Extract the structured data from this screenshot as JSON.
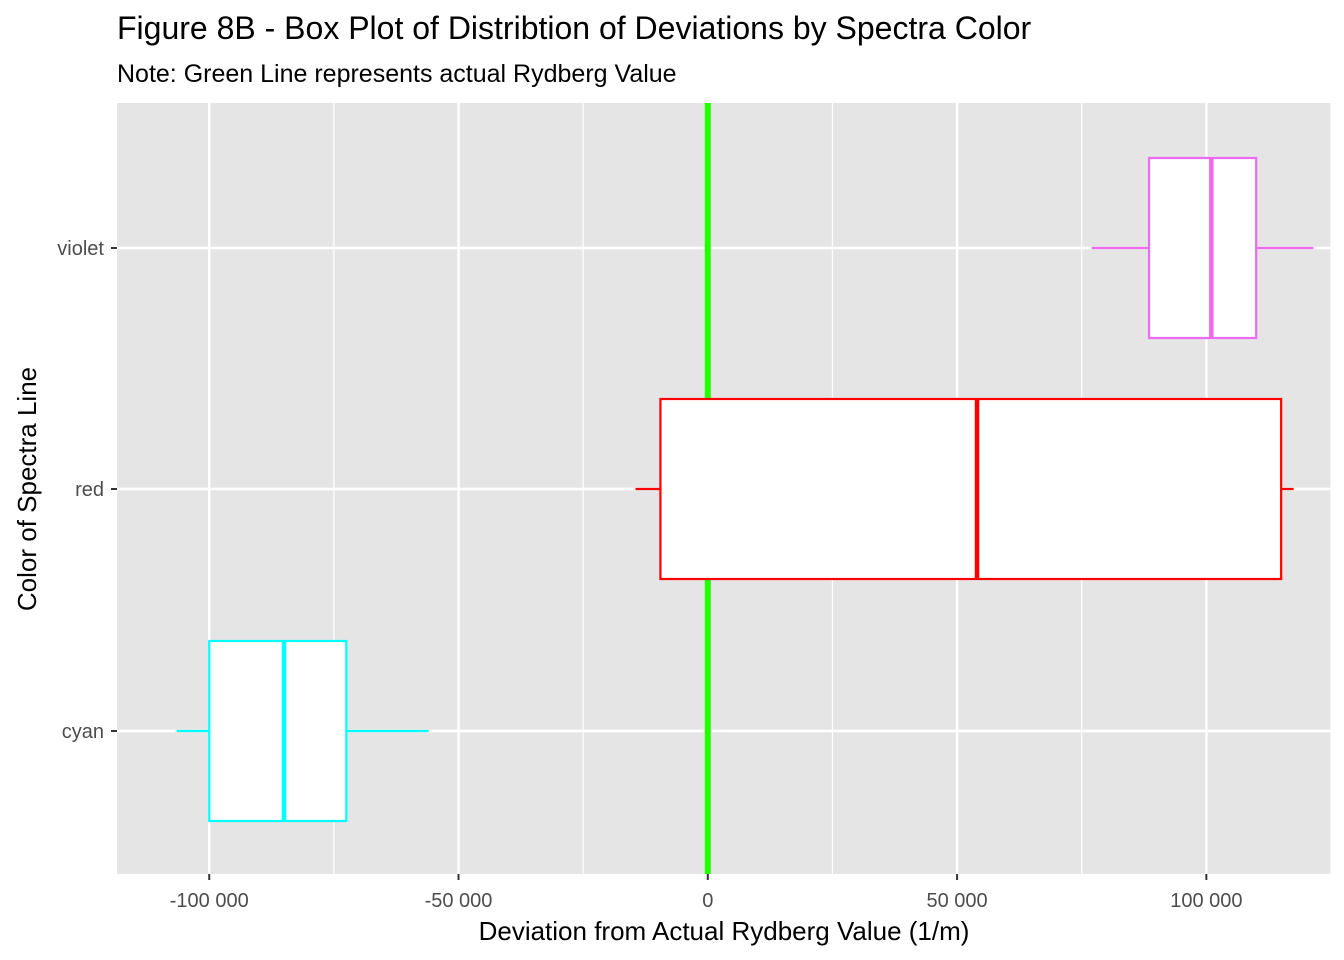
{
  "chart_data": {
    "type": "box",
    "title": "Figure 8B - Box Plot of Distribtion of Deviations by Spectra Color",
    "subtitle": "Note: Green Line represents actual Rydberg Value",
    "xlabel": "Deviation from Actual Rydberg Value (1/m)",
    "ylabel": "Color of Spectra Line",
    "xlim": [
      -118500,
      125000
    ],
    "x_ticks": [
      {
        "value": -100000,
        "label": "-100 000"
      },
      {
        "value": -50000,
        "label": "-50 000"
      },
      {
        "value": 0,
        "label": "0"
      },
      {
        "value": 50000,
        "label": "50 000"
      },
      {
        "value": 100000,
        "label": "100 000"
      }
    ],
    "x_minor_ticks": [
      -75000,
      -25000,
      25000,
      75000,
      125000
    ],
    "categories": [
      "violet",
      "red",
      "cyan"
    ],
    "series": [
      {
        "category": "violet",
        "color": "#ee6aee",
        "whisker_low": 77000,
        "q1": 88500,
        "median": 101000,
        "q3": 110000,
        "whisker_high": 121500
      },
      {
        "category": "red",
        "color": "#ff0000",
        "whisker_low": -14500,
        "q1": -9500,
        "median": 54000,
        "q3": 115000,
        "whisker_high": 117500
      },
      {
        "category": "cyan",
        "color": "#00ffff",
        "whisker_low": -106500,
        "q1": -100000,
        "median": -85000,
        "q3": -72500,
        "whisker_high": -56000
      }
    ],
    "reference_line": {
      "value": 0,
      "color": "#22ff00"
    },
    "grid": true,
    "panel_background": "#e5e5e5",
    "box_fill": "#ffffff"
  }
}
